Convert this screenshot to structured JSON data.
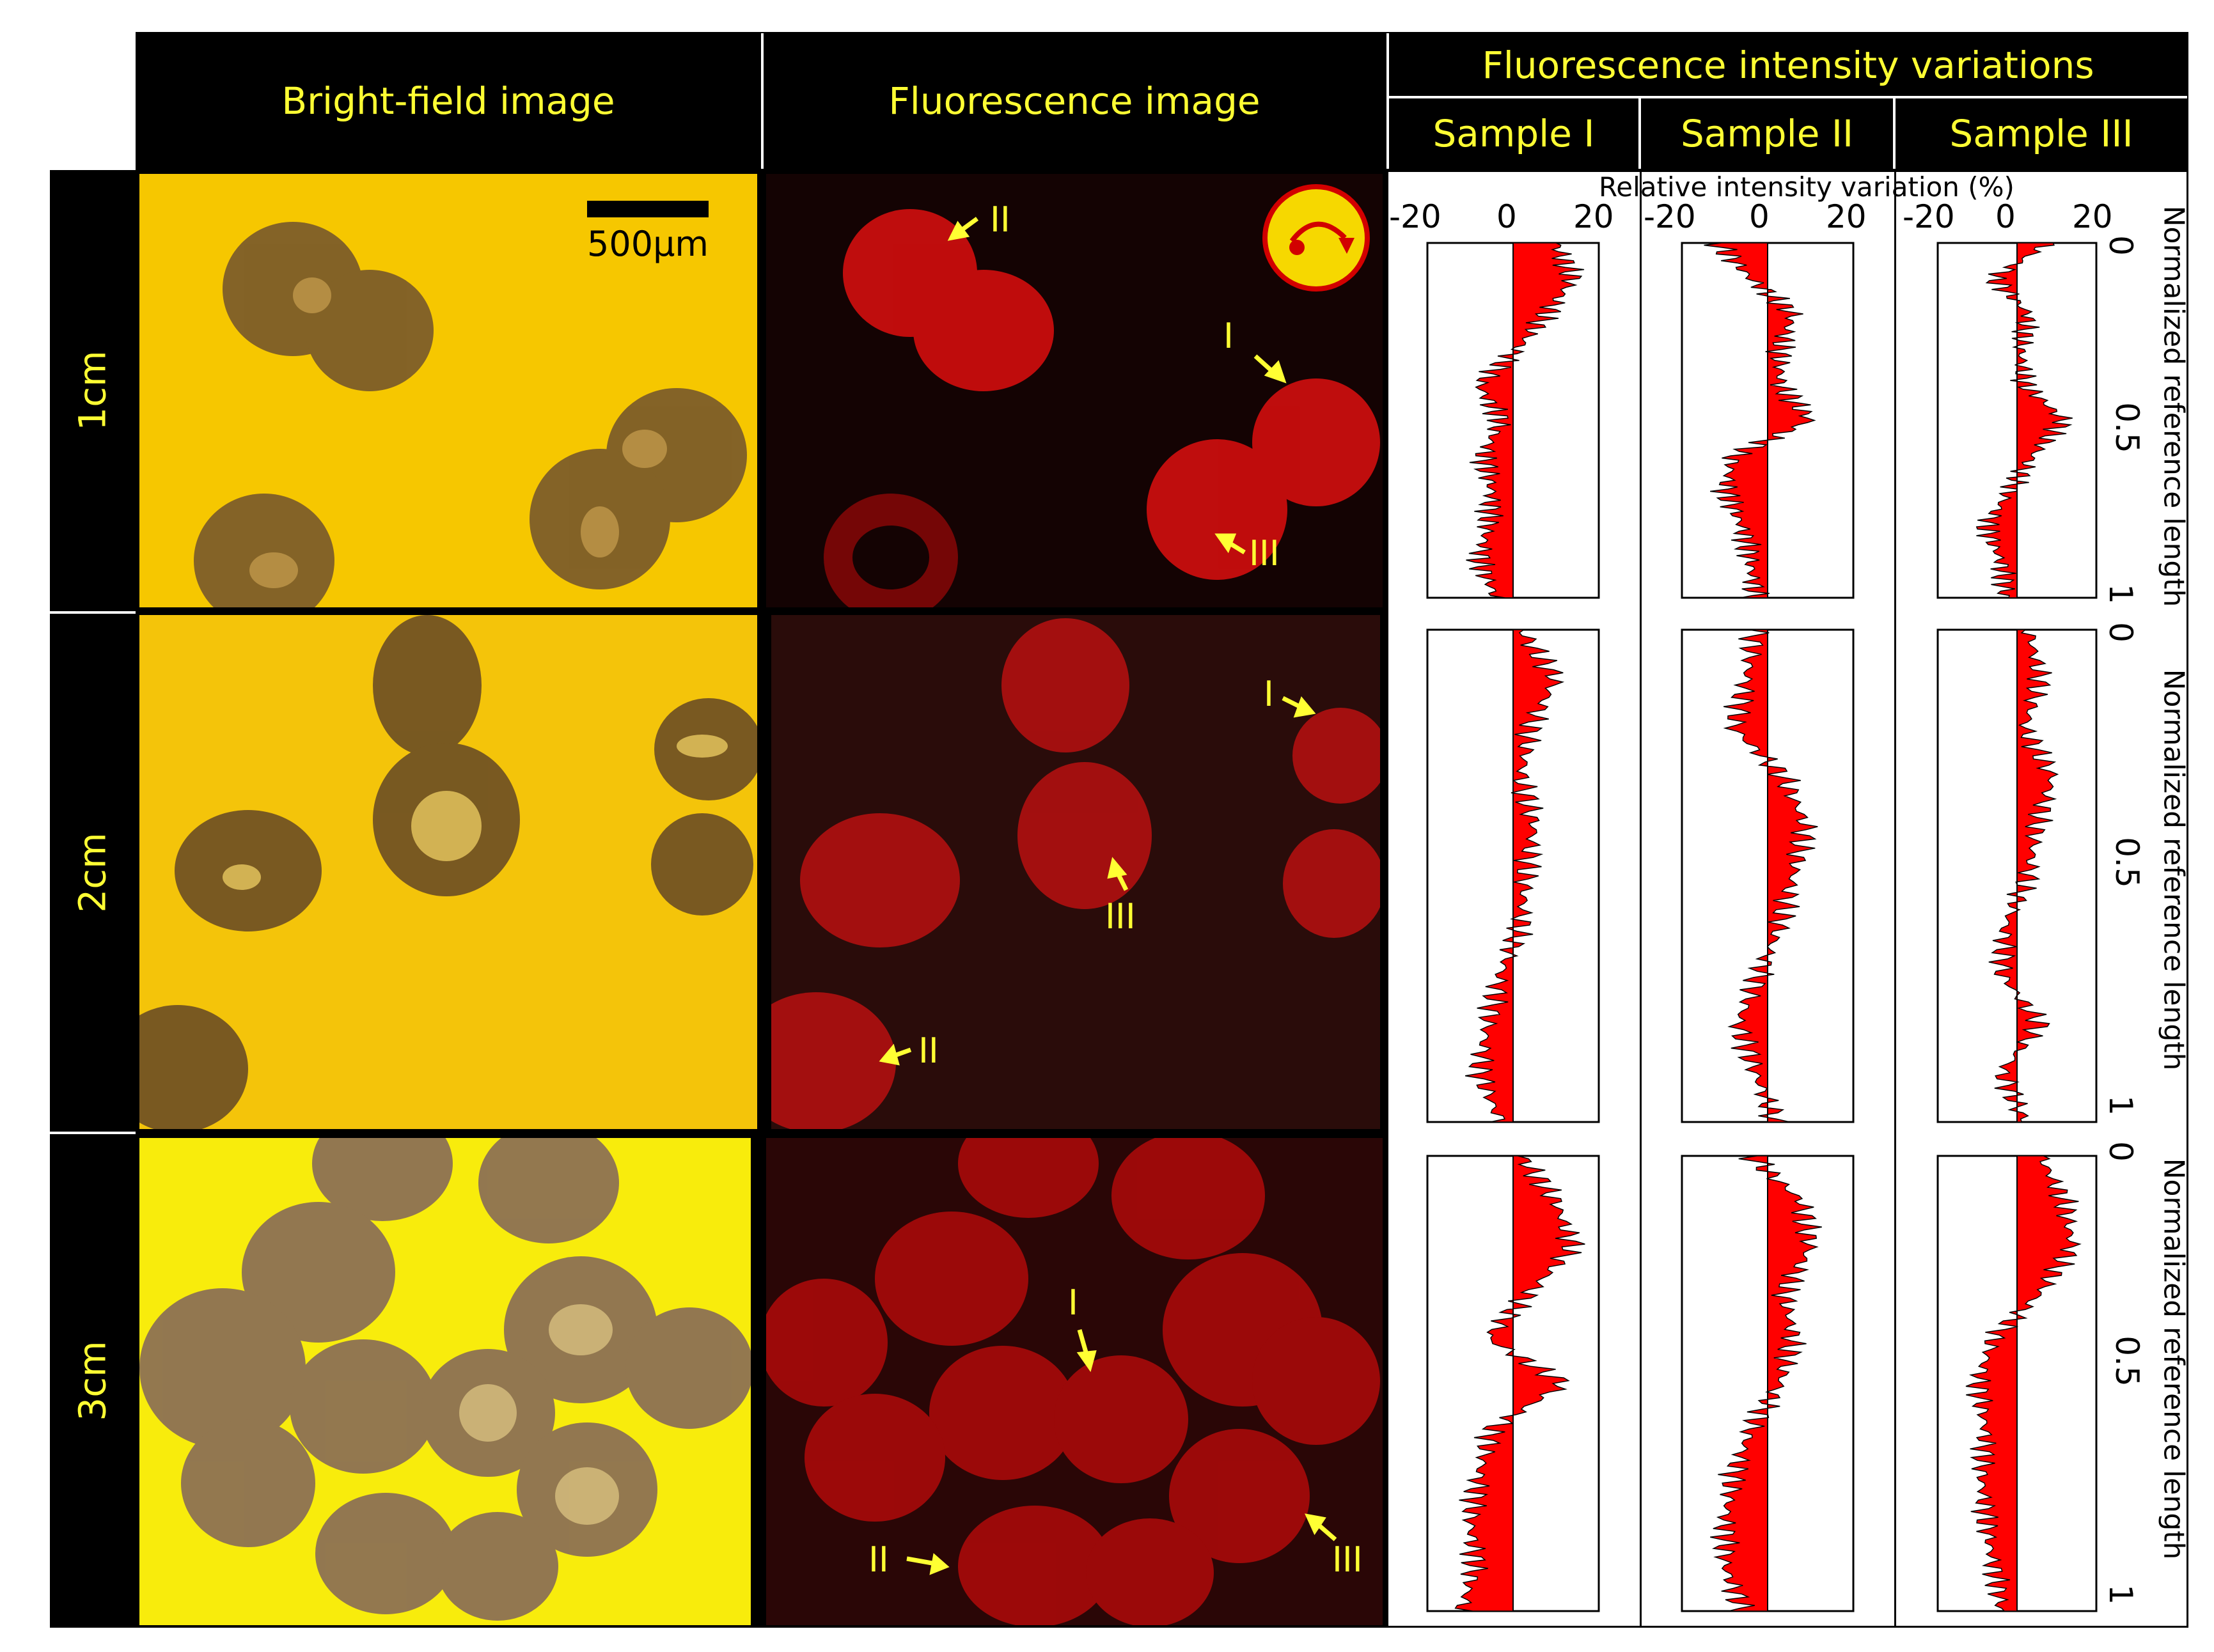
{
  "headers": {
    "bright_field": "Bright-field image",
    "fluorescence": "Fluorescence image",
    "intensity": "Fluorescence intensity variations",
    "samples": [
      "Sample I",
      "Sample II",
      "Sample III"
    ]
  },
  "rows": [
    "1cm",
    "2cm",
    "3cm"
  ],
  "scale_bar": "500µm",
  "arrow_labels": {
    "row1": [
      "II",
      "I",
      "III"
    ],
    "row2": [
      "I",
      "III",
      "II"
    ],
    "row3": [
      "I",
      "II",
      "III"
    ]
  },
  "x_axis_label": "Relative intensity variation (%)",
  "x_ticks": [
    "-20",
    "0",
    "20"
  ],
  "y_axis_label": "Normalized reference length",
  "y_ticks": [
    "0",
    "0.5",
    "1"
  ],
  "colors": {
    "header_bg": "#000000",
    "header_text": "#ffff33",
    "profile_fill": "#ff0000",
    "bright_field": "#f5c800",
    "fluo_bg": "#1a0404"
  },
  "chart_data": {
    "type": "area",
    "title": "Fluorescence intensity variations",
    "xlabel": "Relative intensity variation (%)",
    "ylabel": "Normalized reference length",
    "xlim": [
      -20,
      20
    ],
    "ylim": [
      0,
      1
    ],
    "y": [
      0,
      0.1,
      0.2,
      0.3,
      0.4,
      0.5,
      0.6,
      0.7,
      0.8,
      0.9,
      1.0
    ],
    "panels": [
      {
        "row": "1cm",
        "sample": "Sample I",
        "values": [
          10,
          14,
          8,
          1,
          -8,
          -3,
          -7,
          -5,
          -6,
          -8,
          -4
        ]
      },
      {
        "row": "1cm",
        "sample": "Sample II",
        "values": [
          -12,
          -4,
          6,
          3,
          3,
          10,
          -8,
          -10,
          -6,
          -4,
          -3
        ]
      },
      {
        "row": "1cm",
        "sample": "Sample III",
        "values": [
          8,
          -6,
          3,
          1,
          2,
          12,
          4,
          -2,
          -8,
          -4,
          -3
        ]
      },
      {
        "row": "2cm",
        "sample": "Sample I",
        "values": [
          2,
          10,
          4,
          2,
          5,
          3,
          2,
          -3,
          -6,
          -8,
          -3
        ]
      },
      {
        "row": "2cm",
        "sample": "Sample II",
        "values": [
          -3,
          -5,
          -8,
          4,
          9,
          6,
          3,
          -2,
          -7,
          -3,
          2
        ]
      },
      {
        "row": "2cm",
        "sample": "Sample III",
        "values": [
          3,
          6,
          2,
          9,
          5,
          3,
          -3,
          -4,
          6,
          -4,
          2
        ]
      },
      {
        "row": "3cm",
        "sample": "Sample I",
        "values": [
          2,
          10,
          14,
          4,
          -6,
          12,
          -5,
          -8,
          -10,
          -9,
          -12
        ]
      },
      {
        "row": "3cm",
        "sample": "Sample II",
        "values": [
          -4,
          8,
          10,
          4,
          6,
          3,
          -4,
          -8,
          -10,
          -10,
          -6
        ]
      },
      {
        "row": "3cm",
        "sample": "Sample III",
        "values": [
          6,
          12,
          14,
          6,
          -6,
          -10,
          -8,
          -9,
          -8,
          -6,
          -4
        ]
      }
    ]
  }
}
